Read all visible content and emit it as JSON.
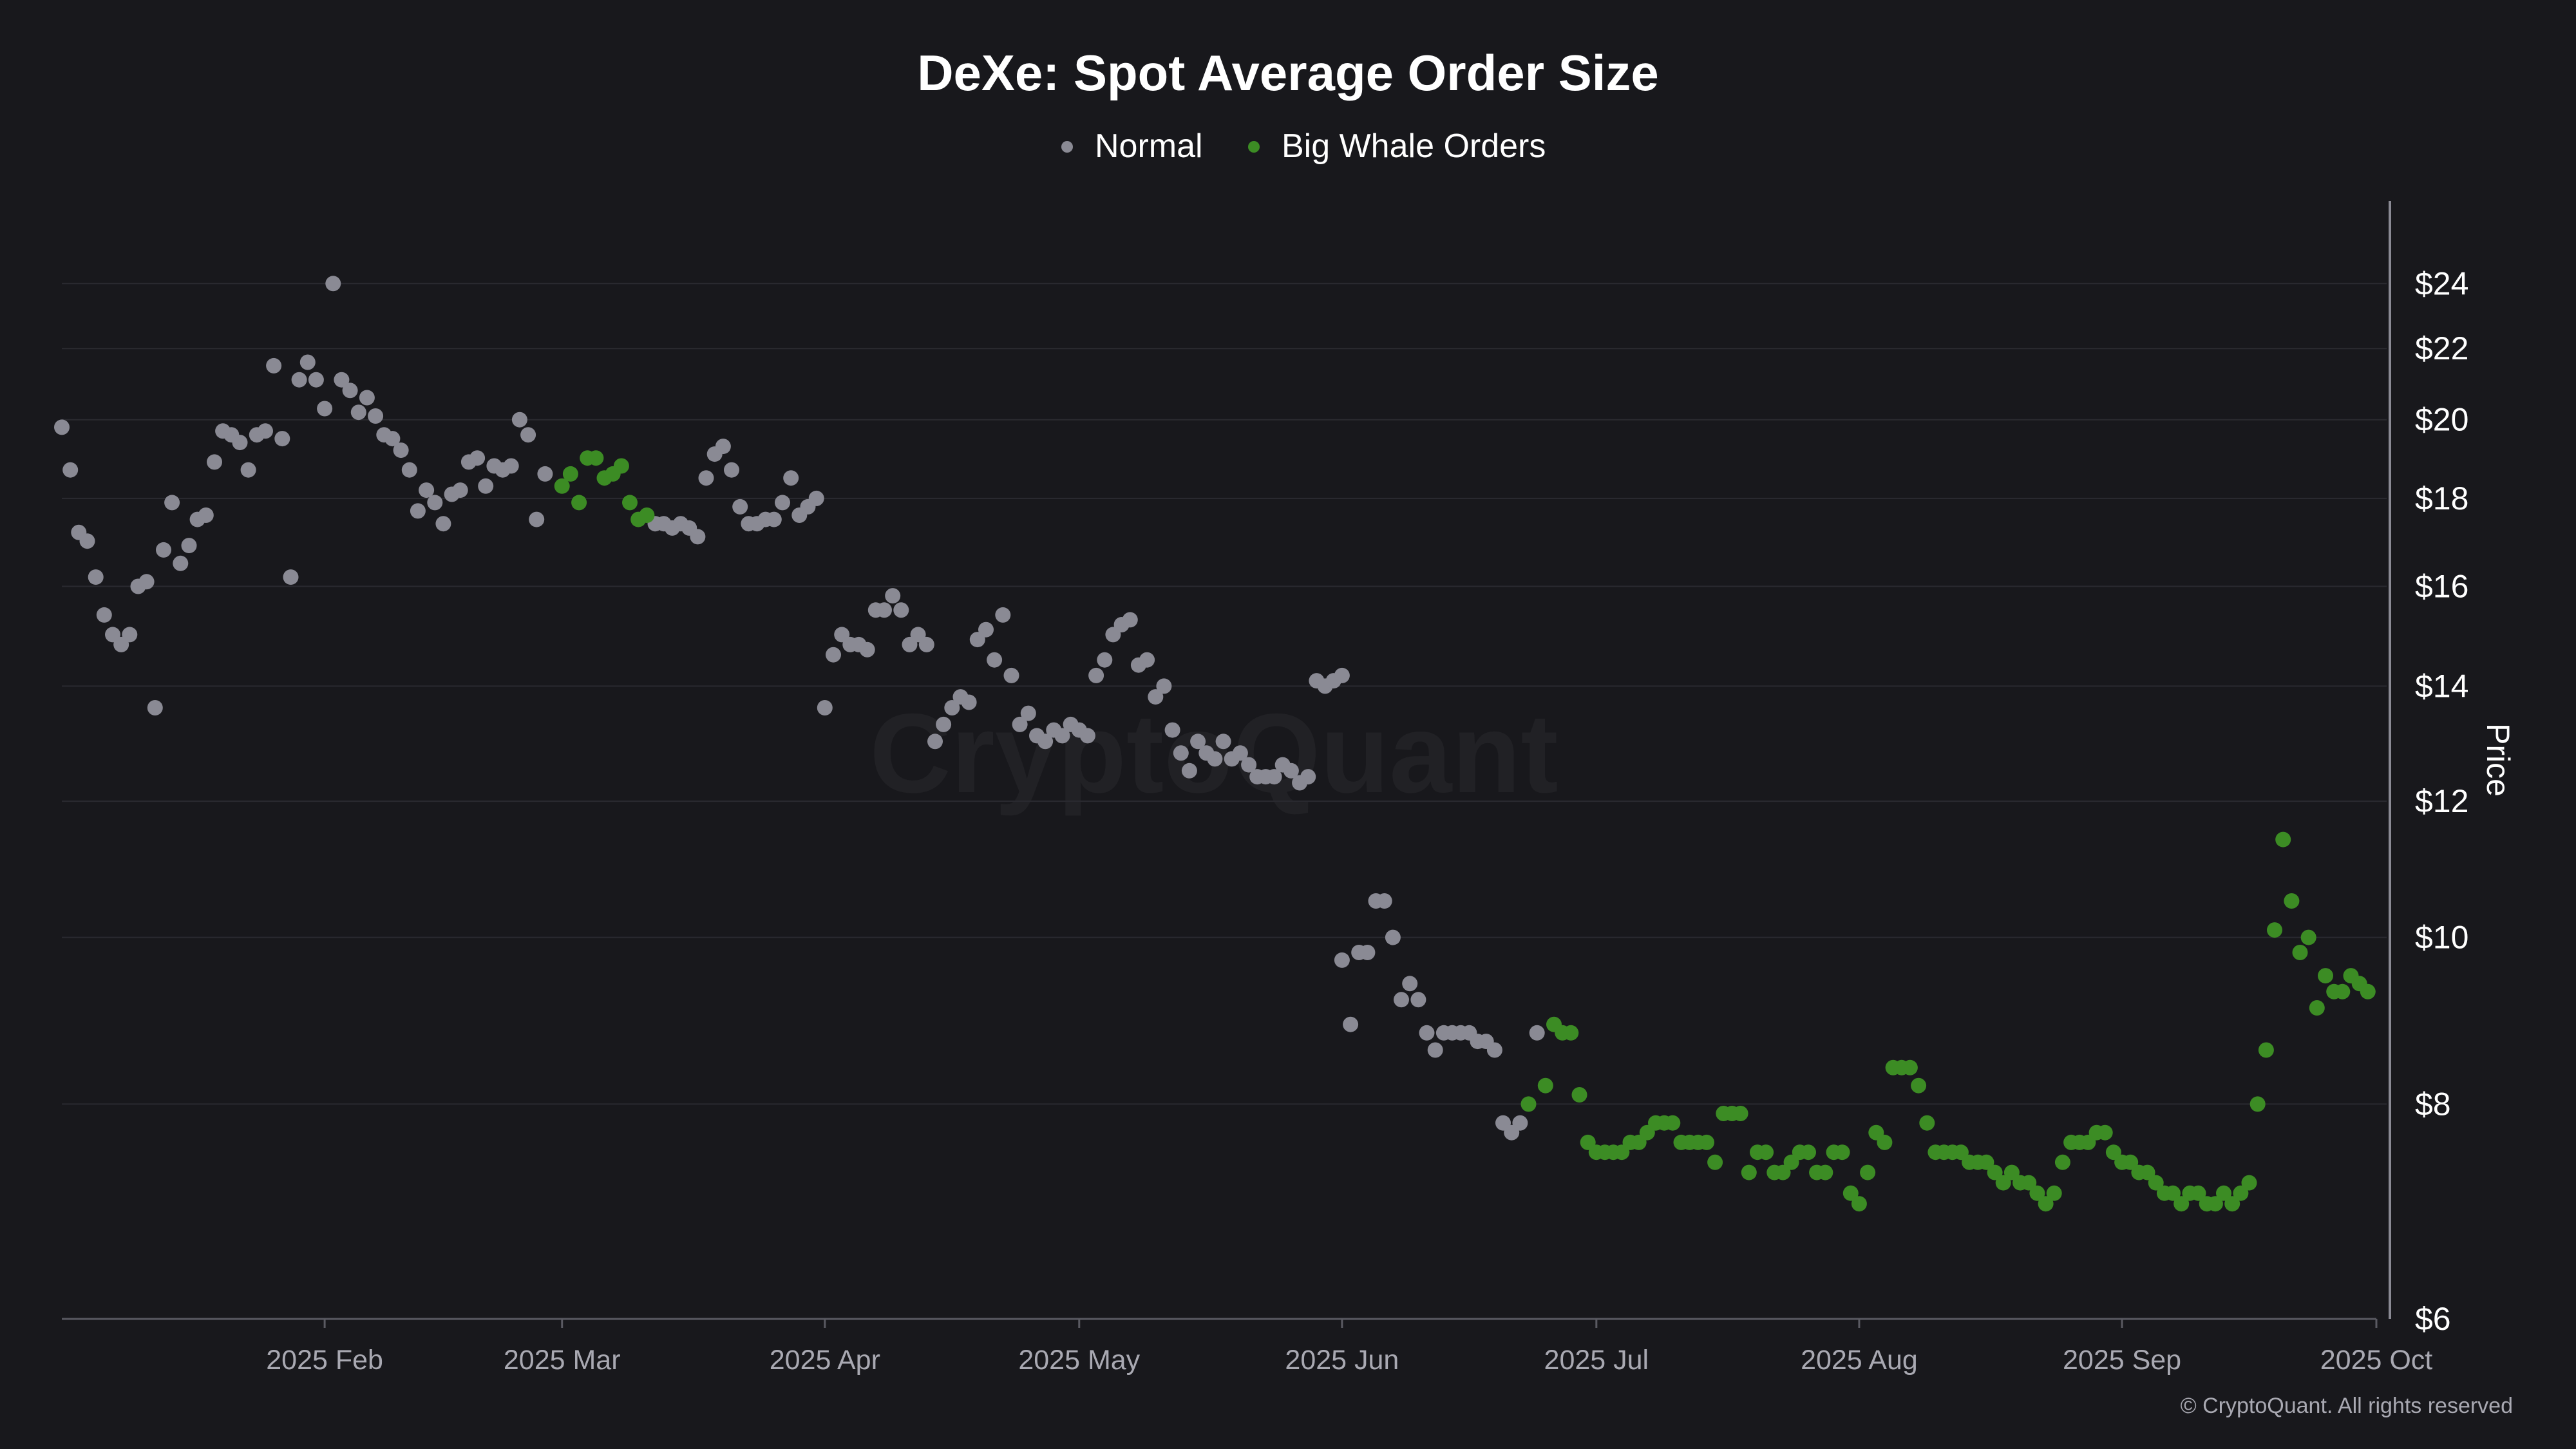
{
  "chart_data": {
    "type": "scatter",
    "title": "DeXe: Spot Average Order Size",
    "y_axis_label": "Price",
    "y_scale": "log",
    "ylim": [
      6,
      25.5
    ],
    "xlim": [
      "2025-01-01",
      "2025-10-01"
    ],
    "y_ticks": [
      6,
      8,
      10,
      12,
      14,
      16,
      18,
      20,
      22,
      24
    ],
    "y_tick_labels": [
      "$6",
      "$8",
      "$10",
      "$12",
      "$14",
      "$16",
      "$18",
      "$20",
      "$22",
      "$24"
    ],
    "x_ticks": [
      "2025-02-01",
      "2025-03-01",
      "2025-04-01",
      "2025-05-01",
      "2025-06-01",
      "2025-07-01",
      "2025-08-01",
      "2025-09-01",
      "2025-10-01"
    ],
    "x_tick_labels": [
      "2025 Feb",
      "2025 Mar",
      "2025 Apr",
      "2025 May",
      "2025 Jun",
      "2025 Jul",
      "2025 Aug",
      "2025 Sep",
      "2025 Oct"
    ],
    "grid": "horizontal",
    "legend_position": "top-center",
    "colors": {
      "background": "#18181c",
      "normal": "#8a8a94",
      "whale": "#3c8c24",
      "grid": "#2a2a30"
    },
    "series": [
      {
        "name": "Normal",
        "color": "#8a8a94",
        "points": [
          [
            "2025-01-01",
            19.8
          ],
          [
            "2025-01-02",
            18.7
          ],
          [
            "2025-01-03",
            17.2
          ],
          [
            "2025-01-04",
            17.0
          ],
          [
            "2025-01-05",
            16.2
          ],
          [
            "2025-01-06",
            15.4
          ],
          [
            "2025-01-07",
            15.0
          ],
          [
            "2025-01-08",
            14.8
          ],
          [
            "2025-01-09",
            15.0
          ],
          [
            "2025-01-10",
            16.0
          ],
          [
            "2025-01-11",
            16.1
          ],
          [
            "2025-01-12",
            13.6
          ],
          [
            "2025-01-13",
            16.8
          ],
          [
            "2025-01-14",
            17.9
          ],
          [
            "2025-01-15",
            16.5
          ],
          [
            "2025-01-16",
            16.9
          ],
          [
            "2025-01-17",
            17.5
          ],
          [
            "2025-01-18",
            17.6
          ],
          [
            "2025-01-19",
            18.9
          ],
          [
            "2025-01-20",
            19.7
          ],
          [
            "2025-01-21",
            19.6
          ],
          [
            "2025-01-22",
            19.4
          ],
          [
            "2025-01-23",
            18.7
          ],
          [
            "2025-01-24",
            19.6
          ],
          [
            "2025-01-25",
            19.7
          ],
          [
            "2025-01-26",
            21.5
          ],
          [
            "2025-01-27",
            19.5
          ],
          [
            "2025-01-28",
            16.2
          ],
          [
            "2025-01-29",
            21.1
          ],
          [
            "2025-01-30",
            21.6
          ],
          [
            "2025-01-31",
            21.1
          ],
          [
            "2025-02-01",
            20.3
          ],
          [
            "2025-02-02",
            24.0
          ],
          [
            "2025-02-03",
            21.1
          ],
          [
            "2025-02-04",
            20.8
          ],
          [
            "2025-02-05",
            20.2
          ],
          [
            "2025-02-06",
            20.6
          ],
          [
            "2025-02-07",
            20.1
          ],
          [
            "2025-02-08",
            19.6
          ],
          [
            "2025-02-09",
            19.5
          ],
          [
            "2025-02-10",
            19.2
          ],
          [
            "2025-02-11",
            18.7
          ],
          [
            "2025-02-12",
            17.7
          ],
          [
            "2025-02-13",
            18.2
          ],
          [
            "2025-02-14",
            17.9
          ],
          [
            "2025-02-15",
            17.4
          ],
          [
            "2025-02-16",
            18.1
          ],
          [
            "2025-02-17",
            18.2
          ],
          [
            "2025-02-18",
            18.9
          ],
          [
            "2025-02-19",
            19.0
          ],
          [
            "2025-02-20",
            18.3
          ],
          [
            "2025-02-21",
            18.8
          ],
          [
            "2025-02-22",
            18.7
          ],
          [
            "2025-02-23",
            18.8
          ],
          [
            "2025-02-24",
            20.0
          ],
          [
            "2025-02-25",
            19.6
          ],
          [
            "2025-02-26",
            17.5
          ],
          [
            "2025-02-27",
            18.6
          ],
          [
            "2025-03-12",
            17.4
          ],
          [
            "2025-03-13",
            17.4
          ],
          [
            "2025-03-14",
            17.3
          ],
          [
            "2025-03-15",
            17.4
          ],
          [
            "2025-03-16",
            17.3
          ],
          [
            "2025-03-17",
            17.1
          ],
          [
            "2025-03-18",
            18.5
          ],
          [
            "2025-03-19",
            19.1
          ],
          [
            "2025-03-20",
            19.3
          ],
          [
            "2025-03-21",
            18.7
          ],
          [
            "2025-03-22",
            17.8
          ],
          [
            "2025-03-23",
            17.4
          ],
          [
            "2025-03-24",
            17.4
          ],
          [
            "2025-03-25",
            17.5
          ],
          [
            "2025-03-26",
            17.5
          ],
          [
            "2025-03-27",
            17.9
          ],
          [
            "2025-03-28",
            18.5
          ],
          [
            "2025-03-29",
            17.6
          ],
          [
            "2025-03-30",
            17.8
          ],
          [
            "2025-03-31",
            18.0
          ],
          [
            "2025-04-01",
            13.6
          ],
          [
            "2025-04-02",
            14.6
          ],
          [
            "2025-04-03",
            15.0
          ],
          [
            "2025-04-04",
            14.8
          ],
          [
            "2025-04-05",
            14.8
          ],
          [
            "2025-04-06",
            14.7
          ],
          [
            "2025-04-07",
            15.5
          ],
          [
            "2025-04-08",
            15.5
          ],
          [
            "2025-04-09",
            15.8
          ],
          [
            "2025-04-10",
            15.5
          ],
          [
            "2025-04-11",
            14.8
          ],
          [
            "2025-04-12",
            15.0
          ],
          [
            "2025-04-13",
            14.8
          ],
          [
            "2025-04-14",
            13.0
          ],
          [
            "2025-04-15",
            13.3
          ],
          [
            "2025-04-16",
            13.6
          ],
          [
            "2025-04-17",
            13.8
          ],
          [
            "2025-04-18",
            13.7
          ],
          [
            "2025-04-19",
            14.9
          ],
          [
            "2025-04-20",
            15.1
          ],
          [
            "2025-04-21",
            14.5
          ],
          [
            "2025-04-22",
            15.4
          ],
          [
            "2025-04-23",
            14.2
          ],
          [
            "2025-04-24",
            13.3
          ],
          [
            "2025-04-25",
            13.5
          ],
          [
            "2025-04-26",
            13.1
          ],
          [
            "2025-04-27",
            13.0
          ],
          [
            "2025-04-28",
            13.2
          ],
          [
            "2025-04-29",
            13.1
          ],
          [
            "2025-04-30",
            13.3
          ],
          [
            "2025-05-01",
            13.2
          ],
          [
            "2025-05-02",
            13.1
          ],
          [
            "2025-05-03",
            14.2
          ],
          [
            "2025-05-04",
            14.5
          ],
          [
            "2025-05-05",
            15.0
          ],
          [
            "2025-05-06",
            15.2
          ],
          [
            "2025-05-07",
            15.3
          ],
          [
            "2025-05-08",
            14.4
          ],
          [
            "2025-05-09",
            14.5
          ],
          [
            "2025-05-10",
            13.8
          ],
          [
            "2025-05-11",
            14.0
          ],
          [
            "2025-05-12",
            13.2
          ],
          [
            "2025-05-13",
            12.8
          ],
          [
            "2025-05-14",
            12.5
          ],
          [
            "2025-05-15",
            13.0
          ],
          [
            "2025-05-16",
            12.8
          ],
          [
            "2025-05-17",
            12.7
          ],
          [
            "2025-05-18",
            13.0
          ],
          [
            "2025-05-19",
            12.7
          ],
          [
            "2025-05-20",
            12.8
          ],
          [
            "2025-05-21",
            12.6
          ],
          [
            "2025-05-22",
            12.4
          ],
          [
            "2025-05-23",
            12.4
          ],
          [
            "2025-05-24",
            12.4
          ],
          [
            "2025-05-25",
            12.6
          ],
          [
            "2025-05-26",
            12.5
          ],
          [
            "2025-05-27",
            12.3
          ],
          [
            "2025-05-28",
            12.4
          ],
          [
            "2025-05-29",
            14.1
          ],
          [
            "2025-05-30",
            14.0
          ],
          [
            "2025-05-31",
            14.1
          ],
          [
            "2025-06-01",
            14.2
          ],
          [
            "2025-06-01",
            9.7
          ],
          [
            "2025-06-02",
            8.9
          ],
          [
            "2025-06-03",
            9.8
          ],
          [
            "2025-06-04",
            9.8
          ],
          [
            "2025-06-05",
            10.5
          ],
          [
            "2025-06-06",
            10.5
          ],
          [
            "2025-06-07",
            10.0
          ],
          [
            "2025-06-08",
            9.2
          ],
          [
            "2025-06-09",
            9.4
          ],
          [
            "2025-06-10",
            9.2
          ],
          [
            "2025-06-11",
            8.8
          ],
          [
            "2025-06-12",
            8.6
          ],
          [
            "2025-06-13",
            8.8
          ],
          [
            "2025-06-14",
            8.8
          ],
          [
            "2025-06-15",
            8.8
          ],
          [
            "2025-06-16",
            8.8
          ],
          [
            "2025-06-17",
            8.7
          ],
          [
            "2025-06-18",
            8.7
          ],
          [
            "2025-06-19",
            8.6
          ],
          [
            "2025-06-20",
            7.8
          ],
          [
            "2025-06-21",
            7.7
          ],
          [
            "2025-06-22",
            7.8
          ],
          [
            "2025-06-24",
            8.8
          ]
        ]
      },
      {
        "name": "Big Whale Orders",
        "color": "#3c8c24",
        "points": [
          [
            "2025-03-01",
            18.3
          ],
          [
            "2025-03-02",
            18.6
          ],
          [
            "2025-03-03",
            17.9
          ],
          [
            "2025-03-04",
            19.0
          ],
          [
            "2025-03-05",
            19.0
          ],
          [
            "2025-03-06",
            18.5
          ],
          [
            "2025-03-07",
            18.6
          ],
          [
            "2025-03-08",
            18.8
          ],
          [
            "2025-03-09",
            17.9
          ],
          [
            "2025-03-10",
            17.5
          ],
          [
            "2025-03-11",
            17.6
          ],
          [
            "2025-06-23",
            8.0
          ],
          [
            "2025-06-25",
            8.2
          ],
          [
            "2025-06-26",
            8.9
          ],
          [
            "2025-06-27",
            8.8
          ],
          [
            "2025-06-28",
            8.8
          ],
          [
            "2025-06-29",
            8.1
          ],
          [
            "2025-06-30",
            7.6
          ],
          [
            "2025-07-01",
            7.5
          ],
          [
            "2025-07-02",
            7.5
          ],
          [
            "2025-07-03",
            7.5
          ],
          [
            "2025-07-04",
            7.5
          ],
          [
            "2025-07-05",
            7.6
          ],
          [
            "2025-07-06",
            7.6
          ],
          [
            "2025-07-07",
            7.7
          ],
          [
            "2025-07-08",
            7.8
          ],
          [
            "2025-07-09",
            7.8
          ],
          [
            "2025-07-10",
            7.8
          ],
          [
            "2025-07-11",
            7.6
          ],
          [
            "2025-07-12",
            7.6
          ],
          [
            "2025-07-13",
            7.6
          ],
          [
            "2025-07-14",
            7.6
          ],
          [
            "2025-07-15",
            7.4
          ],
          [
            "2025-07-16",
            7.9
          ],
          [
            "2025-07-17",
            7.9
          ],
          [
            "2025-07-18",
            7.9
          ],
          [
            "2025-07-19",
            7.3
          ],
          [
            "2025-07-20",
            7.5
          ],
          [
            "2025-07-21",
            7.5
          ],
          [
            "2025-07-22",
            7.3
          ],
          [
            "2025-07-23",
            7.3
          ],
          [
            "2025-07-24",
            7.4
          ],
          [
            "2025-07-25",
            7.5
          ],
          [
            "2025-07-26",
            7.5
          ],
          [
            "2025-07-27",
            7.3
          ],
          [
            "2025-07-28",
            7.3
          ],
          [
            "2025-07-29",
            7.5
          ],
          [
            "2025-07-30",
            7.5
          ],
          [
            "2025-07-31",
            7.1
          ],
          [
            "2025-08-01",
            7.0
          ],
          [
            "2025-08-02",
            7.3
          ],
          [
            "2025-08-03",
            7.7
          ],
          [
            "2025-08-04",
            7.6
          ],
          [
            "2025-08-05",
            8.4
          ],
          [
            "2025-08-06",
            8.4
          ],
          [
            "2025-08-07",
            8.4
          ],
          [
            "2025-08-08",
            8.2
          ],
          [
            "2025-08-09",
            7.8
          ],
          [
            "2025-08-10",
            7.5
          ],
          [
            "2025-08-11",
            7.5
          ],
          [
            "2025-08-12",
            7.5
          ],
          [
            "2025-08-13",
            7.5
          ],
          [
            "2025-08-14",
            7.4
          ],
          [
            "2025-08-15",
            7.4
          ],
          [
            "2025-08-16",
            7.4
          ],
          [
            "2025-08-17",
            7.3
          ],
          [
            "2025-08-18",
            7.2
          ],
          [
            "2025-08-19",
            7.3
          ],
          [
            "2025-08-20",
            7.2
          ],
          [
            "2025-08-21",
            7.2
          ],
          [
            "2025-08-22",
            7.1
          ],
          [
            "2025-08-23",
            7.0
          ],
          [
            "2025-08-24",
            7.1
          ],
          [
            "2025-08-25",
            7.4
          ],
          [
            "2025-08-26",
            7.6
          ],
          [
            "2025-08-27",
            7.6
          ],
          [
            "2025-08-28",
            7.6
          ],
          [
            "2025-08-29",
            7.7
          ],
          [
            "2025-08-30",
            7.7
          ],
          [
            "2025-08-31",
            7.5
          ],
          [
            "2025-09-01",
            7.4
          ],
          [
            "2025-09-02",
            7.4
          ],
          [
            "2025-09-03",
            7.3
          ],
          [
            "2025-09-04",
            7.3
          ],
          [
            "2025-09-05",
            7.2
          ],
          [
            "2025-09-06",
            7.1
          ],
          [
            "2025-09-07",
            7.1
          ],
          [
            "2025-09-08",
            7.0
          ],
          [
            "2025-09-09",
            7.1
          ],
          [
            "2025-09-10",
            7.1
          ],
          [
            "2025-09-11",
            7.0
          ],
          [
            "2025-09-12",
            7.0
          ],
          [
            "2025-09-13",
            7.1
          ],
          [
            "2025-09-14",
            7.0
          ],
          [
            "2025-09-15",
            7.1
          ],
          [
            "2025-09-16",
            7.2
          ],
          [
            "2025-09-17",
            8.0
          ],
          [
            "2025-09-18",
            8.6
          ],
          [
            "2025-09-19",
            10.1
          ],
          [
            "2025-09-20",
            11.4
          ],
          [
            "2025-09-21",
            10.5
          ],
          [
            "2025-09-22",
            9.8
          ],
          [
            "2025-09-23",
            10.0
          ],
          [
            "2025-09-24",
            9.1
          ],
          [
            "2025-09-25",
            9.5
          ],
          [
            "2025-09-26",
            9.3
          ],
          [
            "2025-09-27",
            9.3
          ],
          [
            "2025-09-28",
            9.5
          ],
          [
            "2025-09-29",
            9.4
          ],
          [
            "2025-09-30",
            9.3
          ]
        ]
      }
    ],
    "watermark": "CryptoQuant",
    "copyright": "© CryptoQuant. All rights reserved"
  }
}
